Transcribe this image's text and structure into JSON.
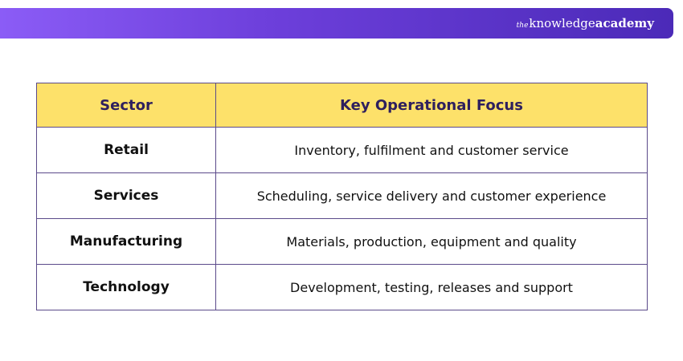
{
  "banner": {
    "brand": {
      "the": "the",
      "knowledge": "knowledge",
      "academy": "academy",
      "color": "#ffffff"
    },
    "gradient_colors": [
      "#8b5cf6",
      "#4b2ab8"
    ]
  },
  "table": {
    "header_bg": "#fde16a",
    "border_color": "#5b4a8a",
    "headers": {
      "sector": "Sector",
      "focus": "Key Operational Focus"
    },
    "rows": [
      {
        "sector": "Retail",
        "focus": "Inventory, fulfilment and customer service"
      },
      {
        "sector": "Services",
        "focus": "Scheduling, service delivery and customer experience"
      },
      {
        "sector": "Manufacturing",
        "focus": "Materials, production, equipment and quality"
      },
      {
        "sector": "Technology",
        "focus": "Development, testing, releases and support"
      }
    ]
  }
}
